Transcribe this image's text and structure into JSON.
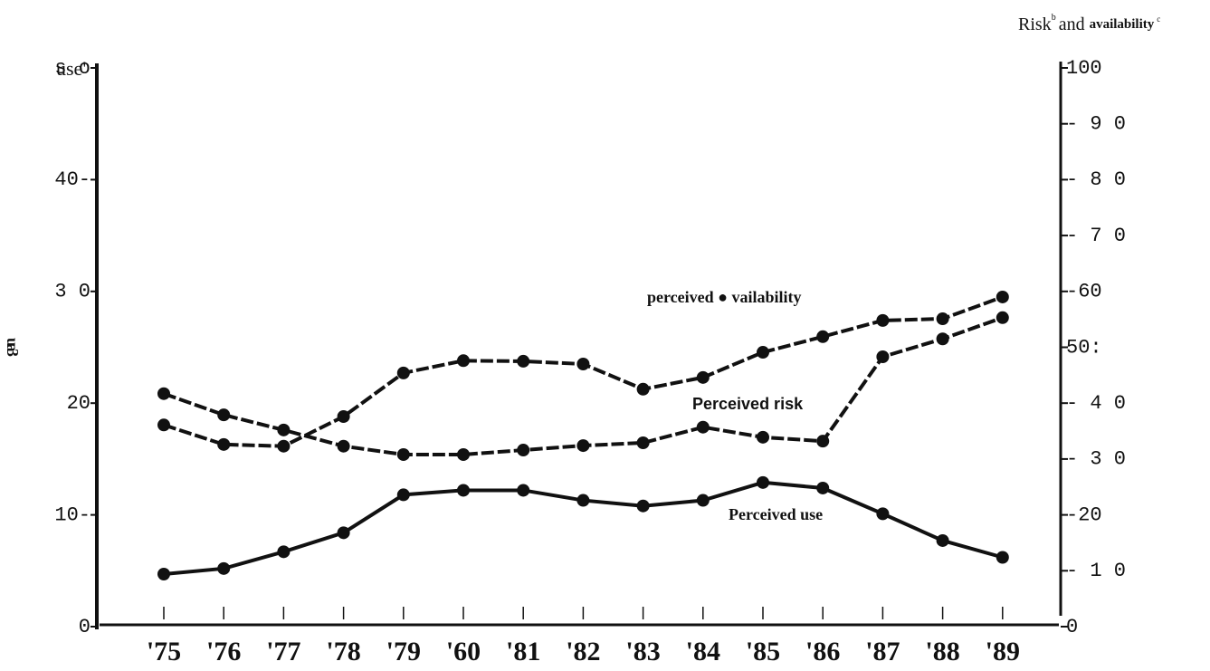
{
  "chart_data": {
    "type": "line",
    "y_label": "use'",
    "y2_label_parts": [
      "Risk",
      "b",
      "and",
      "availability",
      "c"
    ],
    "left_note": "u a 3",
    "categories": [
      "'75",
      "'76",
      "'77",
      "'78",
      "'79",
      "'60",
      "'81",
      "'82",
      "'83",
      "'84",
      "'85",
      "'86",
      "'87",
      "'88",
      "'89"
    ],
    "series": [
      {
        "name": "Perceived use",
        "color": "#111111",
        "dash": false,
        "axis": "y",
        "values": [
          4.7,
          5.2,
          6.7,
          8.4,
          11.8,
          12.2,
          12.2,
          11.3,
          10.8,
          11.3,
          12.9,
          12.4,
          10.1,
          7.7,
          6.2
        ]
      },
      {
        "name": "perceived ● vailability",
        "color": "#111111",
        "dash": true,
        "axis": "y2",
        "values": [
          36.1,
          32.6,
          32.3,
          37.6,
          45.4,
          47.6,
          47.5,
          47.0,
          42.5,
          44.6,
          49.1,
          51.9,
          54.8,
          55.1,
          59.0
        ]
      },
      {
        "name": "Perceived risk",
        "color": "#111111",
        "dash": true,
        "axis": "y2",
        "values": [
          41.7,
          37.9,
          35.2,
          32.3,
          30.8,
          30.8,
          31.6,
          32.4,
          32.9,
          35.7,
          33.9,
          33.2,
          48.3,
          51.5,
          55.3
        ]
      }
    ],
    "ylim": [
      0,
      50
    ],
    "yticks": [
      0,
      {
        "value": 10,
        "label": "10-"
      },
      20,
      {
        "value": 30,
        "label": "3 0"
      },
      {
        "value": 40,
        "label": "40-"
      },
      {
        "value": 50,
        "label": "s o"
      }
    ],
    "y2lim": [
      0,
      100
    ],
    "y2ticks": [
      0,
      {
        "value": 10,
        "label": "- 1 0"
      },
      {
        "value": 20,
        "label": "-20"
      },
      {
        "value": 30,
        "label": "- 3 0"
      },
      {
        "value": 40,
        "label": "- 4 0"
      },
      {
        "value": 50,
        "label": "50:"
      },
      {
        "value": 60,
        "label": "-60"
      },
      {
        "value": 70,
        "label": "- 7 0"
      },
      {
        "value": 80,
        "label": "- 8 0"
      },
      {
        "value": 90,
        "label": "- 9 0"
      },
      100
    ]
  }
}
